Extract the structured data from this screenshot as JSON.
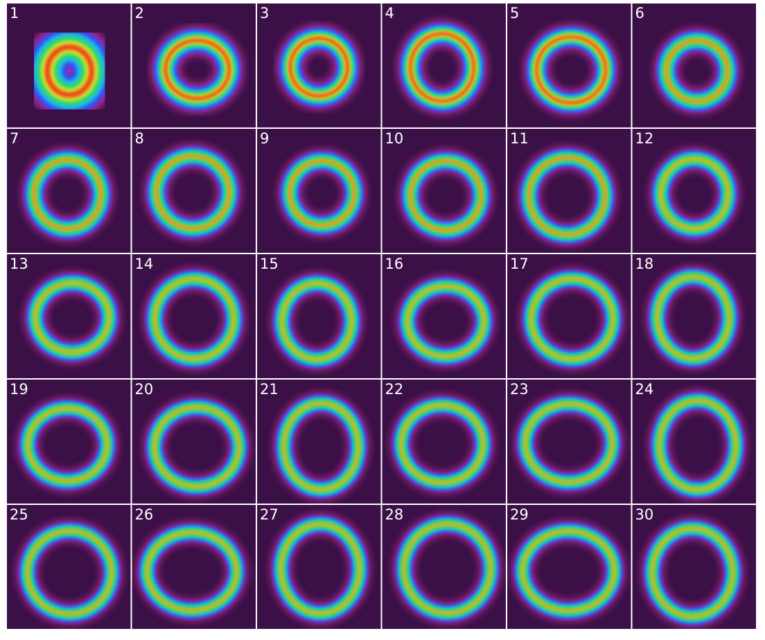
{
  "panels": [
    {
      "label": "1"
    },
    {
      "label": "2"
    },
    {
      "label": "3"
    },
    {
      "label": "4"
    },
    {
      "label": "5"
    },
    {
      "label": "6"
    },
    {
      "label": "7"
    },
    {
      "label": "8"
    },
    {
      "label": "9"
    },
    {
      "label": "10"
    },
    {
      "label": "11"
    },
    {
      "label": "12"
    },
    {
      "label": "13"
    },
    {
      "label": "14"
    },
    {
      "label": "15"
    },
    {
      "label": "16"
    },
    {
      "label": "17"
    },
    {
      "label": "18"
    },
    {
      "label": "19"
    },
    {
      "label": "20"
    },
    {
      "label": "21"
    },
    {
      "label": "22"
    },
    {
      "label": "23"
    },
    {
      "label": "24"
    },
    {
      "label": "25"
    },
    {
      "label": "26"
    },
    {
      "label": "27"
    },
    {
      "label": "28"
    },
    {
      "label": "29"
    },
    {
      "label": "30"
    }
  ]
}
